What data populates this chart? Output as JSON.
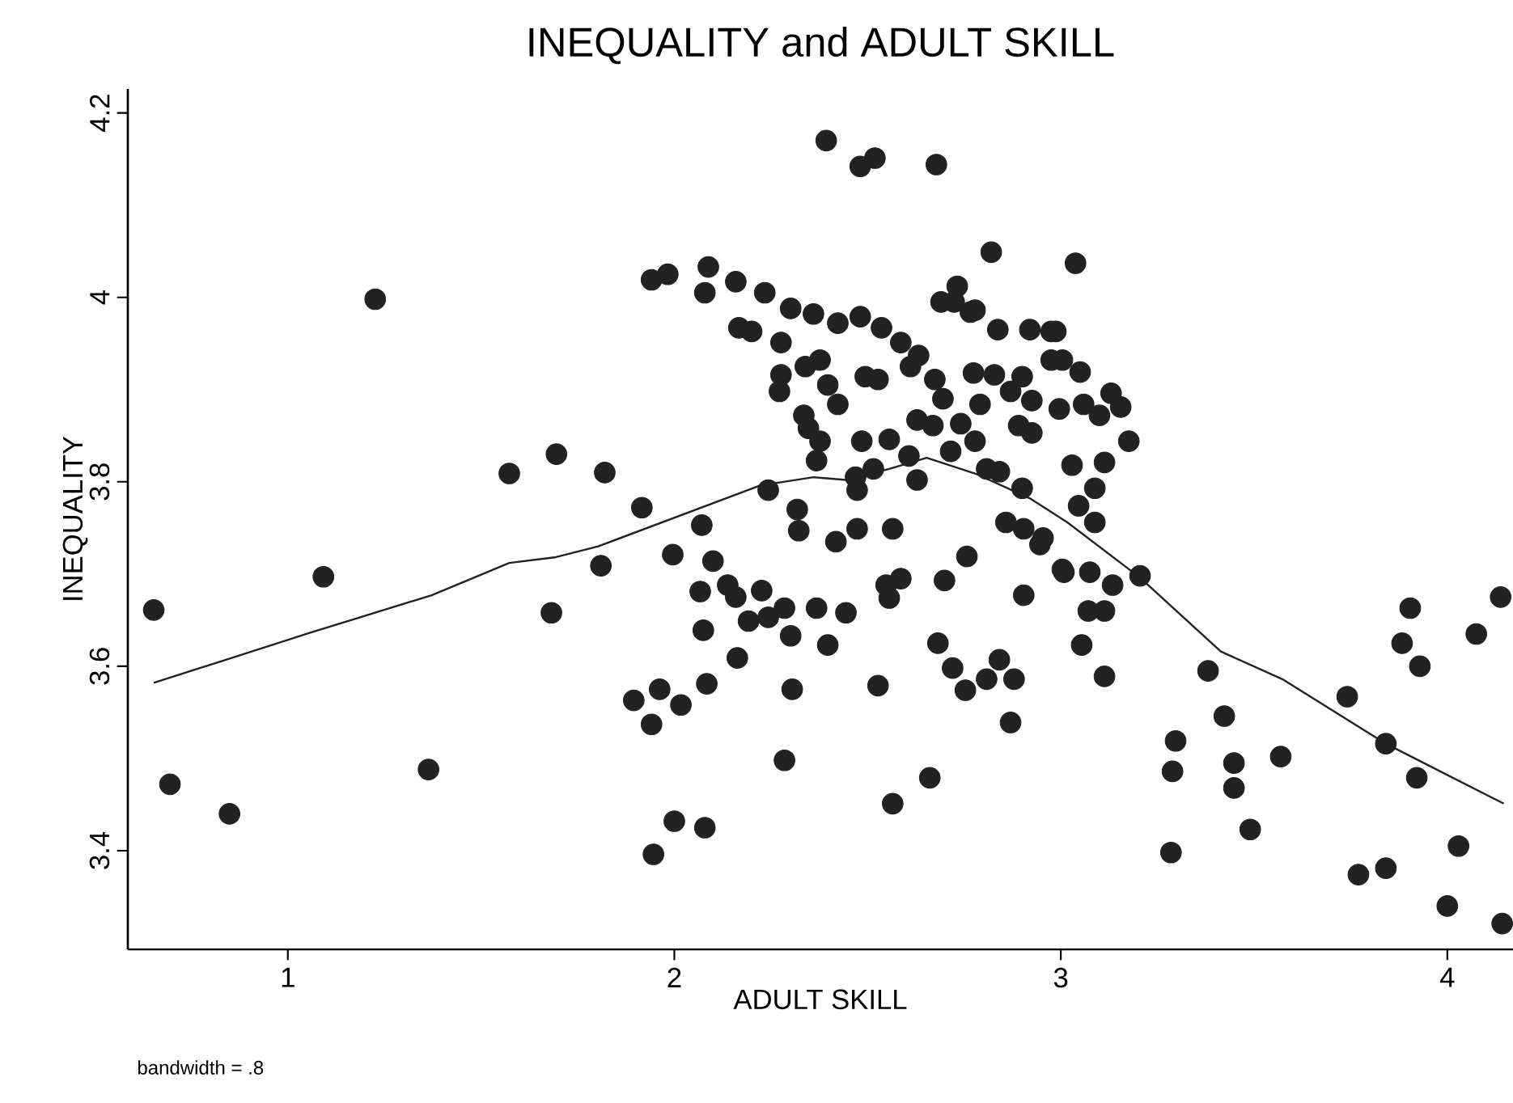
{
  "chart_data": {
    "type": "scatter",
    "title": "INEQUALITY and ADULT SKILL",
    "xlabel": "ADULT SKILL",
    "ylabel": "INEQUALITY",
    "annotations": [
      "bandwidth = .8"
    ],
    "xlim": [
      0.586,
      4.17
    ],
    "ylim": [
      3.293,
      4.226
    ],
    "xticks": [
      1,
      2,
      3,
      4
    ],
    "yticks": [
      3.4,
      3.6,
      3.8,
      4,
      4.2
    ],
    "series": [
      {
        "marker": "circle",
        "color": "#222222",
        "x": [
          1.226,
          1.573,
          1.695,
          1.82,
          0.653,
          0.695,
          0.849,
          1.092,
          1.364,
          1.682,
          1.81,
          2.393,
          2.481,
          2.519,
          2.678,
          2.82,
          1.941,
          1.983,
          2.088,
          2.079,
          2.159,
          2.234,
          2.301,
          2.36,
          2.167,
          2.2,
          2.276,
          2.423,
          2.481,
          2.536,
          2.586,
          2.632,
          2.611,
          2.377,
          2.339,
          2.276,
          2.272,
          2.397,
          2.423,
          2.335,
          2.347,
          2.377,
          2.368,
          2.494,
          2.527,
          2.674,
          2.695,
          2.628,
          2.669,
          2.741,
          2.791,
          2.778,
          2.715,
          2.607,
          2.485,
          2.556,
          2.515,
          2.469,
          2.473,
          2.628,
          2.808,
          2.841,
          2.9,
          2.724,
          2.732,
          2.69,
          2.766,
          2.778,
          2.837,
          2.92,
          2.975,
          2.774,
          2.828,
          2.87,
          2.9,
          2.925,
          2.891,
          2.925,
          2.975,
          2.996,
          1.916,
          2.071,
          2.243,
          2.318,
          2.322,
          2.473,
          2.565,
          2.418,
          2.858,
          2.904,
          2.954,
          3.038,
          2.987,
          3.004,
          3.05,
          3.059,
          3.1,
          3.13,
          3.155,
          3.176,
          3.029,
          3.113,
          3.088,
          3.046,
          3.088,
          1.996,
          2.1,
          2.067,
          2.138,
          2.159,
          2.226,
          2.192,
          2.243,
          2.285,
          2.368,
          2.444,
          2.075,
          2.301,
          2.397,
          2.163,
          1.895,
          1.962,
          2.017,
          1.941,
          2.084,
          2.305,
          2.285,
          2.0,
          2.079,
          1.946,
          2.527,
          2.565,
          2.661,
          2.548,
          2.586,
          2.556,
          2.699,
          2.757,
          2.682,
          2.72,
          2.753,
          2.841,
          2.879,
          2.808,
          2.87,
          2.904,
          2.946,
          3.004,
          3.008,
          3.075,
          3.134,
          3.205,
          3.071,
          3.113,
          3.054,
          3.113,
          3.381,
          3.423,
          3.297,
          3.289,
          3.448,
          3.448,
          3.569,
          3.49,
          3.285,
          3.741,
          3.841,
          3.921,
          3.904,
          3.883,
          3.929,
          4.075,
          4.138,
          3.77,
          3.841,
          4.029,
          4.0,
          4.142
        ],
        "values": [
          3.998,
          3.809,
          3.83,
          3.81,
          3.661,
          3.472,
          3.44,
          3.697,
          3.488,
          3.658,
          3.709,
          4.17,
          4.142,
          4.151,
          4.144,
          4.049,
          4.019,
          4.025,
          4.033,
          4.005,
          4.017,
          4.005,
          3.988,
          3.982,
          3.967,
          3.963,
          3.951,
          3.972,
          3.979,
          3.967,
          3.951,
          3.937,
          3.925,
          3.932,
          3.925,
          3.916,
          3.898,
          3.905,
          3.884,
          3.872,
          3.858,
          3.844,
          3.823,
          3.914,
          3.911,
          3.911,
          3.89,
          3.867,
          3.861,
          3.863,
          3.884,
          3.844,
          3.833,
          3.828,
          3.844,
          3.846,
          3.814,
          3.805,
          3.791,
          3.802,
          3.814,
          3.811,
          3.793,
          3.995,
          4.012,
          3.995,
          3.984,
          3.986,
          3.965,
          3.965,
          3.963,
          3.918,
          3.916,
          3.898,
          3.914,
          3.888,
          3.861,
          3.853,
          3.932,
          3.879,
          3.772,
          3.753,
          3.791,
          3.77,
          3.747,
          3.749,
          3.749,
          3.735,
          3.756,
          3.749,
          3.739,
          4.037,
          3.963,
          3.932,
          3.919,
          3.884,
          3.872,
          3.896,
          3.881,
          3.844,
          3.818,
          3.821,
          3.793,
          3.774,
          3.756,
          3.721,
          3.714,
          3.681,
          3.688,
          3.675,
          3.682,
          3.649,
          3.653,
          3.663,
          3.663,
          3.658,
          3.639,
          3.633,
          3.623,
          3.609,
          3.563,
          3.575,
          3.558,
          3.537,
          3.581,
          3.575,
          3.498,
          3.432,
          3.425,
          3.396,
          3.579,
          3.451,
          3.479,
          3.688,
          3.695,
          3.674,
          3.693,
          3.719,
          3.625,
          3.598,
          3.574,
          3.607,
          3.586,
          3.586,
          3.539,
          3.677,
          3.732,
          3.705,
          3.702,
          3.702,
          3.688,
          3.698,
          3.66,
          3.66,
          3.623,
          3.589,
          3.595,
          3.546,
          3.519,
          3.486,
          3.495,
          3.468,
          3.502,
          3.423,
          3.398,
          3.567,
          3.516,
          3.479,
          3.663,
          3.625,
          3.6,
          3.635,
          3.675,
          3.374,
          3.381,
          3.405,
          3.34,
          3.321
        ]
      },
      {
        "type": "line",
        "marker": "none",
        "color": "#222222",
        "x": [
          0.653,
          1.063,
          1.372,
          1.573,
          1.69,
          1.803,
          2.222,
          2.36,
          2.444,
          2.556,
          2.653,
          2.778,
          2.92,
          3.017,
          3.205,
          3.414,
          3.573,
          3.841,
          4.146
        ],
        "values": [
          3.582,
          3.637,
          3.677,
          3.712,
          3.718,
          3.73,
          3.796,
          3.805,
          3.802,
          3.814,
          3.826,
          3.809,
          3.782,
          3.756,
          3.696,
          3.616,
          3.586,
          3.516,
          3.451
        ]
      }
    ]
  }
}
